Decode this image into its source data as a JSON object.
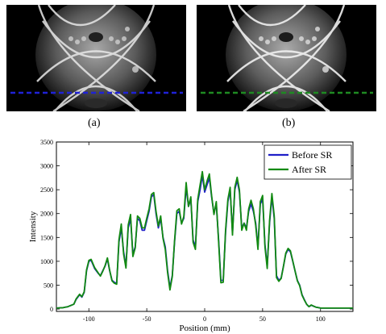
{
  "panels": [
    {
      "caption": "(a)",
      "line_color": "#1f22d6"
    },
    {
      "caption": "(b)",
      "line_color": "#1e8a22"
    }
  ],
  "chart_data": {
    "type": "line",
    "xlabel": "Position (mm)",
    "ylabel": "Intensity",
    "xlim": [
      -128,
      128
    ],
    "ylim": [
      -50,
      3500
    ],
    "xticks": [
      -100,
      -50,
      0,
      50,
      100
    ],
    "yticks": [
      0,
      500,
      1000,
      1500,
      2000,
      2500,
      3000,
      3500
    ],
    "legend_position": "top-right",
    "grid": false,
    "series": [
      {
        "name": "Before SR",
        "color": "#1f1fc8",
        "x": [
          -128,
          -122,
          -118,
          -113,
          -111,
          -108,
          -106,
          -104,
          -102,
          -100,
          -98,
          -95,
          -92,
          -90,
          -88,
          -86,
          -84,
          -82,
          -80,
          -78,
          -76,
          -74,
          -72,
          -70,
          -68,
          -66,
          -64,
          -62,
          -60,
          -58,
          -56,
          -54,
          -52,
          -50,
          -48,
          -46,
          -44,
          -42,
          -40,
          -38,
          -36,
          -34,
          -32,
          -30,
          -28,
          -26,
          -24,
          -22,
          -20,
          -18,
          -16,
          -14,
          -12,
          -10,
          -8,
          -6,
          -4,
          -2,
          0,
          2,
          4,
          6,
          8,
          10,
          12,
          14,
          16,
          18,
          20,
          22,
          24,
          26,
          28,
          30,
          32,
          34,
          36,
          38,
          40,
          42,
          44,
          46,
          48,
          50,
          52,
          54,
          56,
          58,
          60,
          62,
          64,
          66,
          68,
          70,
          72,
          74,
          76,
          78,
          80,
          82,
          84,
          86,
          88,
          90,
          92,
          94,
          96,
          98,
          100,
          104,
          110,
          115,
          120,
          128
        ],
        "values": [
          20,
          30,
          50,
          100,
          200,
          300,
          250,
          350,
          800,
          1000,
          1020,
          850,
          750,
          700,
          800,
          900,
          1050,
          800,
          600,
          560,
          540,
          1400,
          1700,
          1200,
          900,
          1700,
          1900,
          1150,
          1300,
          1900,
          1850,
          1650,
          1650,
          1850,
          2050,
          2350,
          2400,
          2000,
          1700,
          1900,
          1500,
          1300,
          800,
          450,
          700,
          1400,
          2000,
          2050,
          1800,
          1900,
          2550,
          2150,
          2300,
          1450,
          1300,
          2250,
          2500,
          2800,
          2450,
          2600,
          2750,
          2350,
          2000,
          2200,
          1450,
          600,
          600,
          1600,
          2250,
          2500,
          1600,
          2500,
          2700,
          2450,
          1700,
          1800,
          1700,
          2050,
          2200,
          2050,
          1800,
          1300,
          2200,
          2300,
          1350,
          900,
          1800,
          2350,
          1900,
          700,
          600,
          650,
          900,
          1150,
          1250,
          1200,
          1000,
          800,
          600,
          500,
          300,
          200,
          100,
          50,
          80,
          60,
          40,
          30,
          20,
          20,
          20,
          20,
          20,
          20
        ]
      },
      {
        "name": "After SR",
        "color": "#128a12",
        "x": [
          -128,
          -122,
          -118,
          -113,
          -111,
          -108,
          -106,
          -104,
          -102,
          -100,
          -98,
          -95,
          -92,
          -90,
          -88,
          -86,
          -84,
          -82,
          -80,
          -78,
          -76,
          -74,
          -72,
          -70,
          -68,
          -66,
          -64,
          -62,
          -60,
          -58,
          -56,
          -54,
          -52,
          -50,
          -48,
          -46,
          -44,
          -42,
          -40,
          -38,
          -36,
          -34,
          -32,
          -30,
          -28,
          -26,
          -24,
          -22,
          -20,
          -18,
          -16,
          -14,
          -12,
          -10,
          -8,
          -6,
          -4,
          -2,
          0,
          2,
          4,
          6,
          8,
          10,
          12,
          14,
          16,
          18,
          20,
          22,
          24,
          26,
          28,
          30,
          32,
          34,
          36,
          38,
          40,
          42,
          44,
          46,
          48,
          50,
          52,
          54,
          56,
          58,
          60,
          62,
          64,
          66,
          68,
          70,
          72,
          74,
          76,
          78,
          80,
          82,
          84,
          86,
          88,
          90,
          92,
          94,
          96,
          98,
          100,
          104,
          110,
          115,
          120,
          128
        ],
        "values": [
          20,
          30,
          50,
          100,
          210,
          310,
          260,
          360,
          820,
          1020,
          1040,
          870,
          760,
          690,
          790,
          910,
          1070,
          810,
          590,
          540,
          520,
          1450,
          1780,
          1150,
          860,
          1760,
          1980,
          1100,
          1280,
          1950,
          1900,
          1700,
          1700,
          1900,
          2100,
          2400,
          2440,
          2050,
          1740,
          1950,
          1480,
          1250,
          760,
          400,
          680,
          1430,
          2060,
          2100,
          1780,
          1940,
          2650,
          2150,
          2350,
          1400,
          1250,
          2300,
          2600,
          2880,
          2500,
          2680,
          2830,
          2380,
          1980,
          2250,
          1400,
          550,
          560,
          1650,
          2300,
          2550,
          1550,
          2550,
          2760,
          2500,
          1650,
          1800,
          1650,
          2100,
          2280,
          2100,
          1750,
          1250,
          2250,
          2380,
          1300,
          850,
          1850,
          2420,
          1950,
          660,
          580,
          640,
          900,
          1170,
          1270,
          1220,
          1010,
          800,
          590,
          490,
          290,
          190,
          100,
          50,
          85,
          60,
          40,
          30,
          20,
          20,
          20,
          20,
          20,
          20
        ]
      }
    ]
  }
}
